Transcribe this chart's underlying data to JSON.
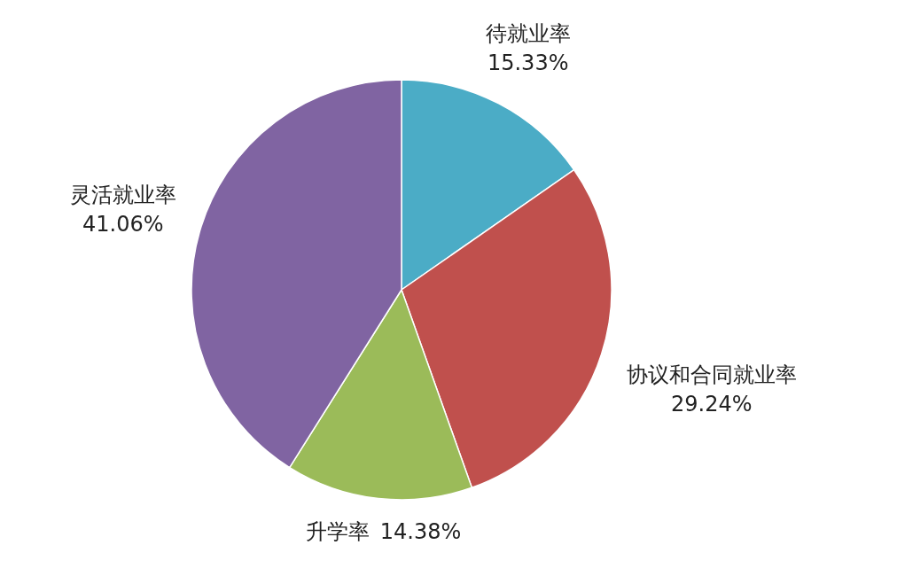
{
  "chart_data": {
    "type": "pie",
    "categories": [
      "待就业率",
      "协议和合同就业率",
      "升学率",
      "灵活就业率"
    ],
    "values": [
      15.33,
      29.24,
      14.38,
      41.06
    ],
    "colors": [
      "#4bacc6",
      "#c0504d",
      "#9bbb59",
      "#8064a2"
    ],
    "value_labels": [
      "15.33%",
      "29.24%",
      "14.38%",
      "41.06%"
    ],
    "legend": false
  }
}
